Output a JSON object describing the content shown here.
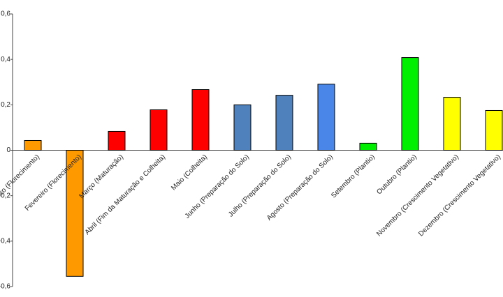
{
  "chart_data": {
    "type": "bar",
    "categories": [
      "Janeiro (Florecimento)",
      "Fevereiro (Florecimento)",
      "Março (Maturação)",
      "Abril (Fim da Maturação e Colheita)",
      "Maio (Colheita)",
      "Junho (Preparação do Solo)",
      "Julho (Preparação do Solo)",
      "Agosto (Preparação do Solo)",
      "Setembro (Plantio)",
      "Outubro (Plantio)",
      "Novembro (Crescimento Vegetativo)",
      "Dezembro (Crescimento Vegetativo)"
    ],
    "values": [
      0.043,
      -0.555,
      0.083,
      0.178,
      0.267,
      0.2,
      0.242,
      0.291,
      0.031,
      0.408,
      0.233,
      0.175
    ],
    "colors": [
      "#ff9900",
      "#ff9900",
      "#ff0000",
      "#ff0000",
      "#ff0000",
      "#4f81bd",
      "#4f81bd",
      "#4a86e8",
      "#00ee00",
      "#00ee00",
      "#ffff00",
      "#ffff00"
    ],
    "ylim": [
      -0.6,
      0.6
    ],
    "yticks": [
      {
        "value": -0.6,
        "label": "-0,6"
      },
      {
        "value": -0.4,
        "label": "-0,4"
      },
      {
        "value": -0.2,
        "label": "-0,2"
      },
      0,
      {
        "value": 0.2,
        "label": "0,2"
      },
      {
        "value": 0.4,
        "label": "0,4"
      },
      {
        "value": 0.6,
        "label": "0,6"
      }
    ],
    "grid": false
  }
}
